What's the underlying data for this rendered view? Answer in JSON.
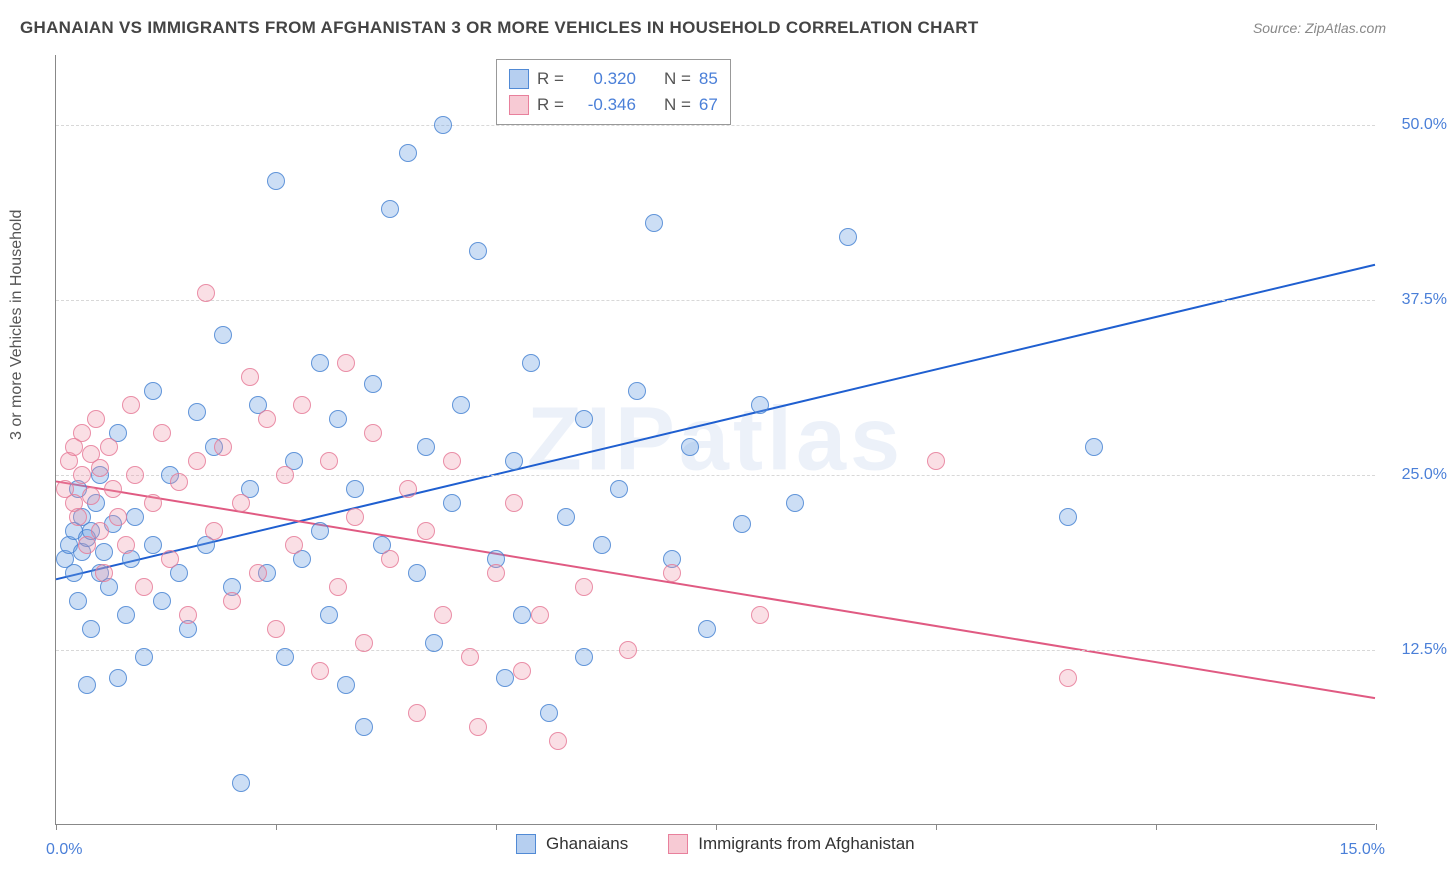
{
  "title": "GHANAIAN VS IMMIGRANTS FROM AFGHANISTAN 3 OR MORE VEHICLES IN HOUSEHOLD CORRELATION CHART",
  "source": "Source: ZipAtlas.com",
  "ylabel": "3 or more Vehicles in Household",
  "watermark": "ZIPatlas",
  "chart": {
    "type": "scatter",
    "xlim": [
      0,
      15
    ],
    "ylim": [
      0,
      55
    ],
    "xticks": [
      0,
      2.5,
      5,
      7.5,
      10,
      12.5,
      15
    ],
    "xtick_labels": {
      "left": "0.0%",
      "right": "15.0%"
    },
    "yticks": [
      12.5,
      25,
      37.5,
      50
    ],
    "ytick_labels": [
      "12.5%",
      "25.0%",
      "37.5%",
      "50.0%"
    ],
    "grid_color": "#d8d8d8",
    "background_color": "#ffffff",
    "axis_color": "#888888",
    "tick_label_color": "#4a7fd8",
    "point_radius": 9
  },
  "series": [
    {
      "name": "Ghanaians",
      "color_fill": "rgba(110,160,225,0.35)",
      "color_stroke": "rgba(70,130,210,0.8)",
      "R": "0.320",
      "N": "85",
      "trend": {
        "x1": 0,
        "y1": 17.5,
        "x2": 15,
        "y2": 40,
        "color": "#1f5fd0",
        "width": 2
      },
      "points": [
        [
          0.1,
          19
        ],
        [
          0.15,
          20
        ],
        [
          0.2,
          21
        ],
        [
          0.2,
          18
        ],
        [
          0.25,
          24
        ],
        [
          0.25,
          16
        ],
        [
          0.3,
          22
        ],
        [
          0.3,
          19.5
        ],
        [
          0.35,
          10
        ],
        [
          0.35,
          20.5
        ],
        [
          0.4,
          14
        ],
        [
          0.4,
          21
        ],
        [
          0.45,
          23
        ],
        [
          0.5,
          18
        ],
        [
          0.5,
          25
        ],
        [
          0.55,
          19.5
        ],
        [
          0.6,
          17
        ],
        [
          0.65,
          21.5
        ],
        [
          0.7,
          10.5
        ],
        [
          0.7,
          28
        ],
        [
          0.8,
          15
        ],
        [
          0.85,
          19
        ],
        [
          0.9,
          22
        ],
        [
          1.0,
          12
        ],
        [
          1.1,
          20
        ],
        [
          1.1,
          31
        ],
        [
          1.2,
          16
        ],
        [
          1.3,
          25
        ],
        [
          1.4,
          18
        ],
        [
          1.5,
          14
        ],
        [
          1.6,
          29.5
        ],
        [
          1.7,
          20
        ],
        [
          1.8,
          27
        ],
        [
          1.9,
          35
        ],
        [
          2.0,
          17
        ],
        [
          2.1,
          3
        ],
        [
          2.2,
          24
        ],
        [
          2.3,
          30
        ],
        [
          2.4,
          18
        ],
        [
          2.5,
          46
        ],
        [
          2.6,
          12
        ],
        [
          2.7,
          26
        ],
        [
          2.8,
          19
        ],
        [
          3.0,
          21
        ],
        [
          3.0,
          33
        ],
        [
          3.1,
          15
        ],
        [
          3.2,
          29
        ],
        [
          3.3,
          10
        ],
        [
          3.4,
          24
        ],
        [
          3.5,
          7
        ],
        [
          3.6,
          31.5
        ],
        [
          3.7,
          20
        ],
        [
          3.8,
          44
        ],
        [
          4.0,
          48
        ],
        [
          4.1,
          18
        ],
        [
          4.2,
          27
        ],
        [
          4.3,
          13
        ],
        [
          4.4,
          50
        ],
        [
          4.5,
          23
        ],
        [
          4.6,
          30
        ],
        [
          4.8,
          41
        ],
        [
          5.0,
          19
        ],
        [
          5.1,
          10.5
        ],
        [
          5.2,
          26
        ],
        [
          5.3,
          15
        ],
        [
          5.4,
          33
        ],
        [
          5.6,
          8
        ],
        [
          5.8,
          22
        ],
        [
          6.0,
          12
        ],
        [
          6.0,
          29
        ],
        [
          6.2,
          20
        ],
        [
          6.4,
          24
        ],
        [
          6.6,
          31
        ],
        [
          6.8,
          43
        ],
        [
          7.0,
          19
        ],
        [
          7.2,
          27
        ],
        [
          7.4,
          14
        ],
        [
          7.8,
          21.5
        ],
        [
          8.0,
          30
        ],
        [
          8.4,
          23
        ],
        [
          9.0,
          42
        ],
        [
          11.5,
          22
        ],
        [
          11.8,
          27
        ]
      ]
    },
    {
      "name": "Immigrants from Afghanistan",
      "color_fill": "rgba(240,150,170,0.30)",
      "color_stroke": "rgba(230,120,150,0.8)",
      "R": "-0.346",
      "N": "67",
      "trend": {
        "x1": 0,
        "y1": 24.5,
        "x2": 15,
        "y2": 9,
        "color": "#e05a82",
        "width": 2
      },
      "points": [
        [
          0.1,
          24
        ],
        [
          0.15,
          26
        ],
        [
          0.2,
          23
        ],
        [
          0.2,
          27
        ],
        [
          0.25,
          22
        ],
        [
          0.3,
          25
        ],
        [
          0.3,
          28
        ],
        [
          0.35,
          20
        ],
        [
          0.4,
          26.5
        ],
        [
          0.4,
          23.5
        ],
        [
          0.45,
          29
        ],
        [
          0.5,
          21
        ],
        [
          0.5,
          25.5
        ],
        [
          0.55,
          18
        ],
        [
          0.6,
          27
        ],
        [
          0.65,
          24
        ],
        [
          0.7,
          22
        ],
        [
          0.8,
          20
        ],
        [
          0.85,
          30
        ],
        [
          0.9,
          25
        ],
        [
          1.0,
          17
        ],
        [
          1.1,
          23
        ],
        [
          1.2,
          28
        ],
        [
          1.3,
          19
        ],
        [
          1.4,
          24.5
        ],
        [
          1.5,
          15
        ],
        [
          1.6,
          26
        ],
        [
          1.7,
          38
        ],
        [
          1.8,
          21
        ],
        [
          1.9,
          27
        ],
        [
          2.0,
          16
        ],
        [
          2.1,
          23
        ],
        [
          2.2,
          32
        ],
        [
          2.3,
          18
        ],
        [
          2.4,
          29
        ],
        [
          2.5,
          14
        ],
        [
          2.6,
          25
        ],
        [
          2.7,
          20
        ],
        [
          2.8,
          30
        ],
        [
          3.0,
          11
        ],
        [
          3.1,
          26
        ],
        [
          3.2,
          17
        ],
        [
          3.3,
          33
        ],
        [
          3.4,
          22
        ],
        [
          3.5,
          13
        ],
        [
          3.6,
          28
        ],
        [
          3.8,
          19
        ],
        [
          4.0,
          24
        ],
        [
          4.1,
          8
        ],
        [
          4.2,
          21
        ],
        [
          4.4,
          15
        ],
        [
          4.5,
          26
        ],
        [
          4.7,
          12
        ],
        [
          4.8,
          7
        ],
        [
          5.0,
          18
        ],
        [
          5.2,
          23
        ],
        [
          5.3,
          11
        ],
        [
          5.5,
          15
        ],
        [
          5.7,
          6
        ],
        [
          6.0,
          17
        ],
        [
          6.5,
          12.5
        ],
        [
          7.0,
          18
        ],
        [
          8.0,
          15
        ],
        [
          10.0,
          26
        ],
        [
          11.5,
          10.5
        ]
      ]
    }
  ],
  "legend_stats_labels": {
    "R": "R =",
    "N": "N ="
  },
  "bottom_legend": [
    "Ghanaians",
    "Immigrants from Afghanistan"
  ]
}
